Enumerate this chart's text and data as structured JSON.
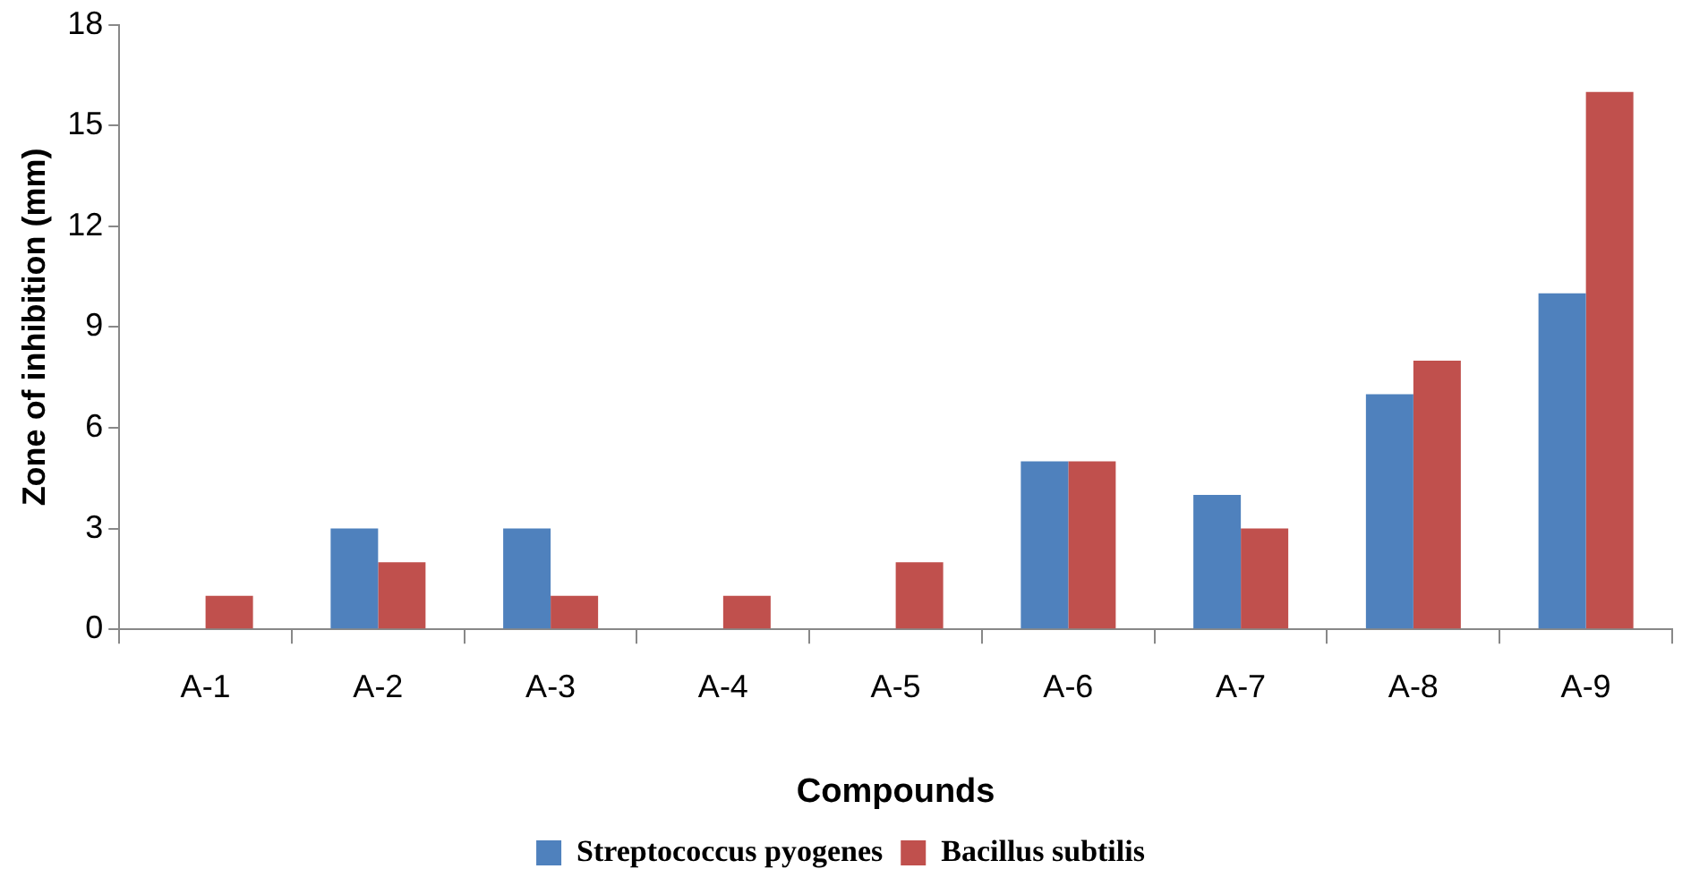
{
  "chart_data": {
    "type": "bar",
    "xlabel": "Compounds",
    "ylabel": "Zone of inhibition (mm)",
    "categories": [
      "A-1",
      "A-2",
      "A-3",
      "A-4",
      "A-5",
      "A-6",
      "A-7",
      "A-8",
      "A-9"
    ],
    "series": [
      {
        "name": "Streptococcus pyogenes",
        "color": "#4f81bd",
        "values": [
          0,
          3,
          3,
          0,
          0,
          5,
          4,
          7,
          10
        ]
      },
      {
        "name": "Bacillus subtilis",
        "color": "#c0504d",
        "values": [
          1,
          2,
          1,
          1,
          2,
          5,
          3,
          8,
          16
        ]
      }
    ],
    "ylim": [
      0,
      18
    ],
    "yticks": [
      0,
      3,
      6,
      9,
      12,
      15,
      18
    ],
    "grid": false,
    "legend": "bottom"
  }
}
